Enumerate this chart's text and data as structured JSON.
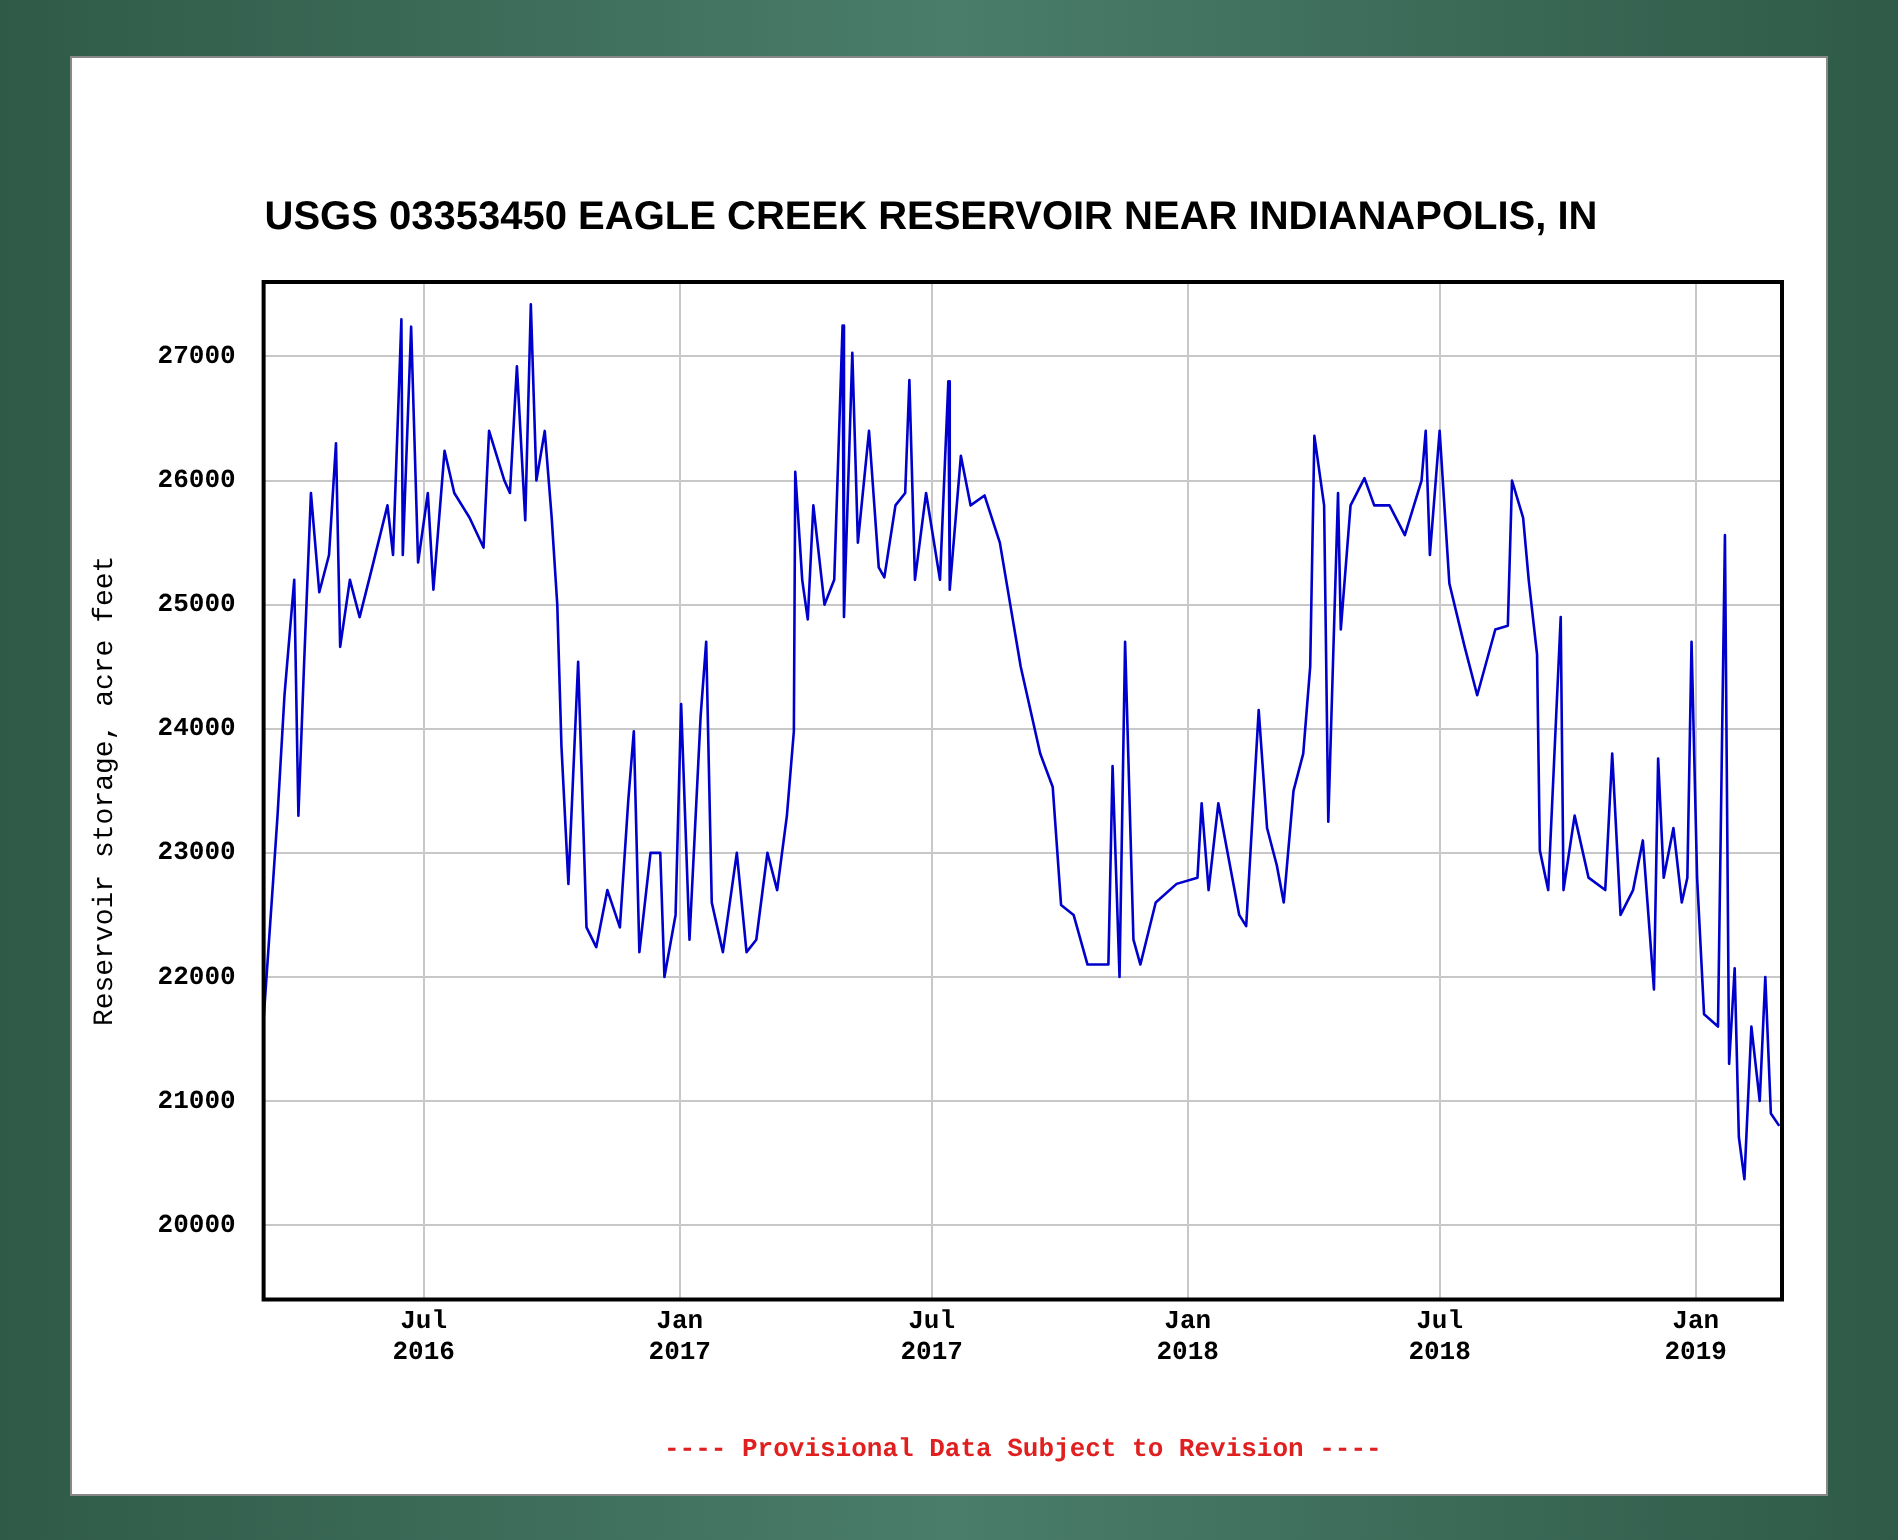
{
  "chart_data": {
    "type": "line",
    "title": "USGS 03353450 EAGLE CREEK RESERVOIR NEAR INDIANAPOLIS, IN",
    "ylabel": "Reservoir storage, acre feet",
    "annotations": [
      "---- Provisional Data Subject to Revision ----"
    ],
    "series": [
      {
        "color": "#0000cc",
        "x": [
          "2016-03-08",
          "2016-03-15",
          "2016-03-18",
          "2016-03-23",
          "2016-03-30",
          "2016-04-02",
          "2016-04-06",
          "2016-04-11",
          "2016-04-17",
          "2016-04-24",
          "2016-04-29",
          "2016-05-02",
          "2016-05-09",
          "2016-05-16",
          "2016-05-25",
          "2016-06-05",
          "2016-06-09",
          "2016-06-15",
          "2016-06-16",
          "2016-06-22",
          "2016-06-27",
          "2016-07-04",
          "2016-07-08",
          "2016-07-16",
          "2016-07-23",
          "2016-08-03",
          "2016-08-13",
          "2016-08-17",
          "2016-08-28",
          "2016-09-01",
          "2016-09-06",
          "2016-09-12",
          "2016-09-16",
          "2016-09-20",
          "2016-09-26",
          "2016-10-01",
          "2016-10-05",
          "2016-10-08",
          "2016-10-13",
          "2016-10-20",
          "2016-10-26",
          "2016-11-02",
          "2016-11-10",
          "2016-11-19",
          "2016-11-25",
          "2016-11-29",
          "2016-12-03",
          "2016-12-11",
          "2016-12-18",
          "2016-12-21",
          "2016-12-29",
          "2017-01-02",
          "2017-01-08",
          "2017-01-16",
          "2017-01-20",
          "2017-01-24",
          "2017-02-01",
          "2017-02-11",
          "2017-02-18",
          "2017-02-25",
          "2017-03-05",
          "2017-03-12",
          "2017-03-19",
          "2017-03-24",
          "2017-03-25",
          "2017-03-30",
          "2017-04-03",
          "2017-04-07",
          "2017-04-15",
          "2017-04-22",
          "2017-04-28",
          "2017-04-29",
          "2017-05-05",
          "2017-05-09",
          "2017-05-17",
          "2017-05-24",
          "2017-05-28",
          "2017-06-05",
          "2017-06-12",
          "2017-06-15",
          "2017-06-19",
          "2017-06-27",
          "2017-07-07",
          "2017-07-13",
          "2017-07-14",
          "2017-07-22",
          "2017-07-29",
          "2017-08-08",
          "2017-08-19",
          "2017-09-03",
          "2017-09-17",
          "2017-09-26",
          "2017-10-02",
          "2017-10-11",
          "2017-10-21",
          "2017-11-05",
          "2017-11-08",
          "2017-11-13",
          "2017-11-17",
          "2017-11-23",
          "2017-11-28",
          "2017-12-09",
          "2017-12-24",
          "2018-01-08",
          "2018-01-11",
          "2018-01-16",
          "2018-01-23",
          "2018-02-02",
          "2018-02-07",
          "2018-02-12",
          "2018-02-21",
          "2018-02-27",
          "2018-03-06",
          "2018-03-11",
          "2018-03-18",
          "2018-03-25",
          "2018-03-30",
          "2018-04-02",
          "2018-04-09",
          "2018-04-12",
          "2018-04-19",
          "2018-04-21",
          "2018-04-28",
          "2018-05-08",
          "2018-05-15",
          "2018-05-26",
          "2018-06-06",
          "2018-06-18",
          "2018-06-21",
          "2018-06-24",
          "2018-07-01",
          "2018-07-08",
          "2018-07-19",
          "2018-07-28",
          "2018-08-10",
          "2018-08-19",
          "2018-08-22",
          "2018-08-30",
          "2018-09-03",
          "2018-09-09",
          "2018-09-11",
          "2018-09-17",
          "2018-09-26",
          "2018-09-28",
          "2018-10-06",
          "2018-10-16",
          "2018-10-28",
          "2018-11-02",
          "2018-11-08",
          "2018-11-17",
          "2018-11-24",
          "2018-12-02",
          "2018-12-05",
          "2018-12-09",
          "2018-12-16",
          "2018-12-22",
          "2018-12-26",
          "2018-12-29",
          "2019-01-02",
          "2019-01-07",
          "2019-01-17",
          "2019-01-22",
          "2019-01-25",
          "2019-01-29",
          "2019-02-01",
          "2019-02-05",
          "2019-02-10",
          "2019-02-16",
          "2019-02-20",
          "2019-02-24",
          "2019-03-02"
        ],
        "values": [
          21660,
          22800,
          23300,
          24270,
          25200,
          23300,
          24500,
          25900,
          25100,
          25400,
          26300,
          24660,
          25200,
          24900,
          25300,
          25800,
          25400,
          27300,
          25400,
          27240,
          25340,
          25900,
          25120,
          26240,
          25900,
          25700,
          25460,
          26400,
          26000,
          25900,
          26920,
          25680,
          27420,
          26000,
          26400,
          25700,
          25000,
          23860,
          22750,
          24540,
          22400,
          22240,
          22700,
          22400,
          23420,
          23980,
          22200,
          23000,
          23000,
          22000,
          22500,
          24200,
          22300,
          24100,
          24700,
          22600,
          22200,
          23000,
          22200,
          22300,
          23000,
          22700,
          23300,
          23980,
          26070,
          25200,
          24880,
          25800,
          25000,
          25200,
          27250,
          24900,
          27030,
          25500,
          26400,
          25300,
          25220,
          25800,
          25900,
          26810,
          25200,
          25900,
          25200,
          26800,
          25120,
          26200,
          25800,
          25880,
          25500,
          24500,
          23800,
          23530,
          22580,
          22500,
          22100,
          22100,
          23700,
          22000,
          24700,
          22300,
          22100,
          22600,
          22750,
          22800,
          23400,
          22700,
          23400,
          22800,
          22500,
          22410,
          24150,
          23200,
          22900,
          22600,
          23500,
          23800,
          24500,
          26360,
          25800,
          23250,
          25900,
          24800,
          25800,
          26020,
          25800,
          25800,
          25560,
          26000,
          26400,
          25400,
          26400,
          25170,
          24660,
          24270,
          24800,
          24830,
          26000,
          25700,
          25200,
          24600,
          23020,
          22700,
          24900,
          22700,
          23300,
          22800,
          22700,
          23800,
          22500,
          22700,
          23100,
          21900,
          23760,
          22800,
          23200,
          22600,
          22800,
          24700,
          22800,
          21700,
          21600,
          25560,
          21300,
          22070,
          20710,
          20370,
          21600,
          21000,
          22000,
          20900,
          20800
        ]
      }
    ],
    "xlim": [
      "2016-03-08",
      "2019-03-04"
    ],
    "xticks": [
      {
        "value": "2016-07",
        "label": "Jul 2016"
      },
      {
        "value": "2017-01",
        "label": "Jan 2017"
      },
      {
        "value": "2017-07",
        "label": "Jul 2017"
      },
      {
        "value": "2018-01",
        "label": "Jan 2018"
      },
      {
        "value": "2018-07",
        "label": "Jul 2018"
      },
      {
        "value": "2019-01",
        "label": "Jan 2019"
      }
    ],
    "ylim": [
      19400,
      27600
    ],
    "yticks": [
      20000,
      21000,
      22000,
      23000,
      24000,
      25000,
      26000,
      27000
    ],
    "grid": true,
    "legend": false,
    "marker": "none",
    "line_style": "solid"
  }
}
